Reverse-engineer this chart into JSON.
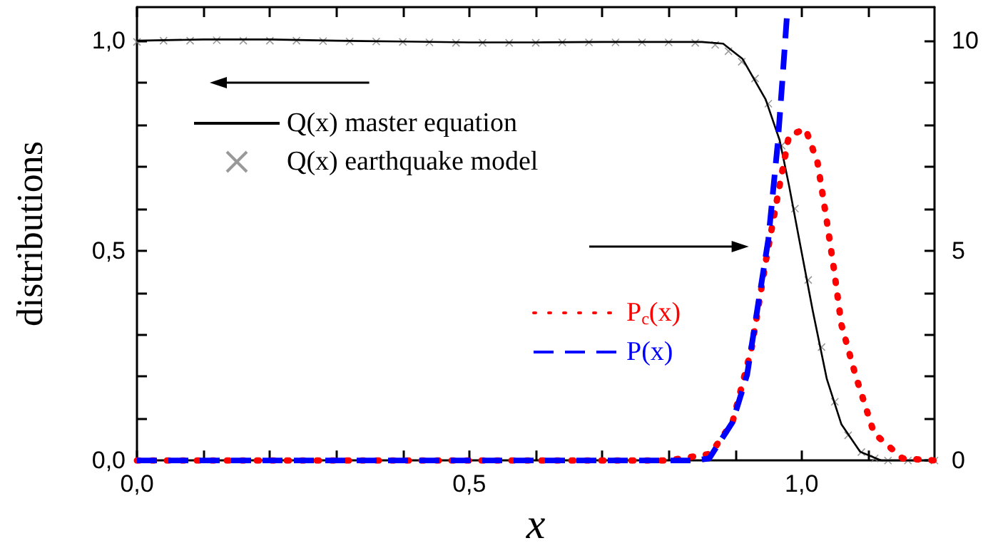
{
  "chart_data": {
    "type": "line",
    "xlabel": "x",
    "ylabel": "distributions",
    "xlim": [
      0,
      1.2
    ],
    "ylim": [
      0,
      1.08
    ],
    "y2lim": [
      0,
      10.8
    ],
    "xticks": [
      {
        "value": 0,
        "label": "0,0"
      },
      {
        "value": 0.1,
        "label": null
      },
      {
        "value": 0.2,
        "label": null
      },
      {
        "value": 0.3,
        "label": null
      },
      {
        "value": 0.4,
        "label": null
      },
      {
        "value": 0.5,
        "label": "0,5"
      },
      {
        "value": 0.6,
        "label": null
      },
      {
        "value": 0.7,
        "label": null
      },
      {
        "value": 0.8,
        "label": null
      },
      {
        "value": 0.9,
        "label": null
      },
      {
        "value": 1.0,
        "label": "1,0"
      },
      {
        "value": 1.1,
        "label": null
      }
    ],
    "yticks": [
      {
        "value": 0,
        "label": "0,0"
      },
      {
        "value": 0.1,
        "label": null
      },
      {
        "value": 0.2,
        "label": null
      },
      {
        "value": 0.3,
        "label": null
      },
      {
        "value": 0.4,
        "label": null
      },
      {
        "value": 0.5,
        "label": "0,5"
      },
      {
        "value": 0.6,
        "label": null
      },
      {
        "value": 0.7,
        "label": null
      },
      {
        "value": 0.8,
        "label": null
      },
      {
        "value": 0.9,
        "label": null
      },
      {
        "value": 1.0,
        "label": "1,0"
      }
    ],
    "y2ticks": [
      0,
      {
        "value": 1,
        "label": null
      },
      {
        "value": 2,
        "label": null
      },
      {
        "value": 3,
        "label": null
      },
      {
        "value": 4,
        "label": null
      },
      5,
      {
        "value": 6,
        "label": null
      },
      {
        "value": 7,
        "label": null
      },
      {
        "value": 8,
        "label": null
      },
      {
        "value": 9,
        "label": null
      },
      10
    ],
    "grid": false,
    "legend": "left",
    "series": [
      {
        "name": "Q(x) master equation",
        "color": "#000000",
        "line_style": "solid",
        "marker": "none",
        "x": [
          0,
          0.1,
          0.2,
          0.3,
          0.4,
          0.5,
          0.6,
          0.7,
          0.8,
          0.85,
          0.882,
          0.911,
          0.946,
          0.967,
          0.981,
          0.999,
          1.017,
          1.038,
          1.06,
          1.088,
          1.12,
          1.2
        ],
        "values": [
          1.0,
          1.003,
          1.003,
          1.0,
          0.998,
          0.996,
          0.996,
          0.997,
          0.997,
          0.997,
          0.993,
          0.957,
          0.86,
          0.763,
          0.656,
          0.505,
          0.355,
          0.194,
          0.086,
          0.021,
          0.0,
          0.0
        ]
      },
      {
        "name": "Q(x) earthquake model",
        "type": "scatter",
        "color": "#808080",
        "marker": "cross",
        "x": [
          0,
          0.04,
          0.08,
          0.12,
          0.16,
          0.2,
          0.24,
          0.28,
          0.32,
          0.36,
          0.4,
          0.44,
          0.48,
          0.52,
          0.56,
          0.6,
          0.64,
          0.68,
          0.72,
          0.76,
          0.8,
          0.84,
          0.87,
          0.89,
          0.91,
          0.93,
          0.95,
          0.97,
          0.99,
          1.01,
          1.03,
          1.05,
          1.07,
          1.09,
          1.11,
          1.13,
          1.16,
          1.2
        ],
        "values": [
          0.997,
          1.0,
          1.0,
          1.001,
          1.0,
          1.0,
          1.0,
          0.999,
          0.998,
          0.998,
          0.997,
          0.996,
          0.995,
          0.995,
          0.995,
          0.995,
          0.996,
          0.996,
          0.996,
          0.996,
          0.996,
          0.995,
          0.99,
          0.975,
          0.95,
          0.91,
          0.85,
          0.75,
          0.6,
          0.43,
          0.27,
          0.14,
          0.06,
          0.02,
          0.005,
          0.0,
          0.0,
          0.0
        ]
      },
      {
        "name": "P$_{c}$(x)",
        "axis": "y2",
        "color": "#ff0000",
        "line_style": "dotted",
        "marker": "none",
        "x": [
          0,
          0.8,
          0.863,
          0.896,
          0.925,
          0.946,
          0.967,
          0.981,
          1.006,
          1.024,
          1.038,
          1.049,
          1.06,
          1.081,
          1.109,
          1.152,
          1.2
        ],
        "values": [
          0,
          0,
          0.16,
          0.91,
          2.69,
          4.73,
          6.56,
          7.74,
          7.9,
          7.1,
          5.7,
          4.52,
          3.23,
          2.04,
          0.65,
          0.05,
          0
        ]
      },
      {
        "name": "P(x)",
        "axis": "y2",
        "color": "#0000ff",
        "line_style": "dashed",
        "marker": "none",
        "x": [
          0,
          0.84,
          0.861,
          0.896,
          0.918,
          0.935,
          0.95,
          0.964,
          0.971,
          0.978
        ],
        "values": [
          0,
          0,
          0.05,
          0.91,
          2.04,
          3.76,
          5.27,
          7.53,
          9.03,
          10.6
        ]
      }
    ]
  }
}
